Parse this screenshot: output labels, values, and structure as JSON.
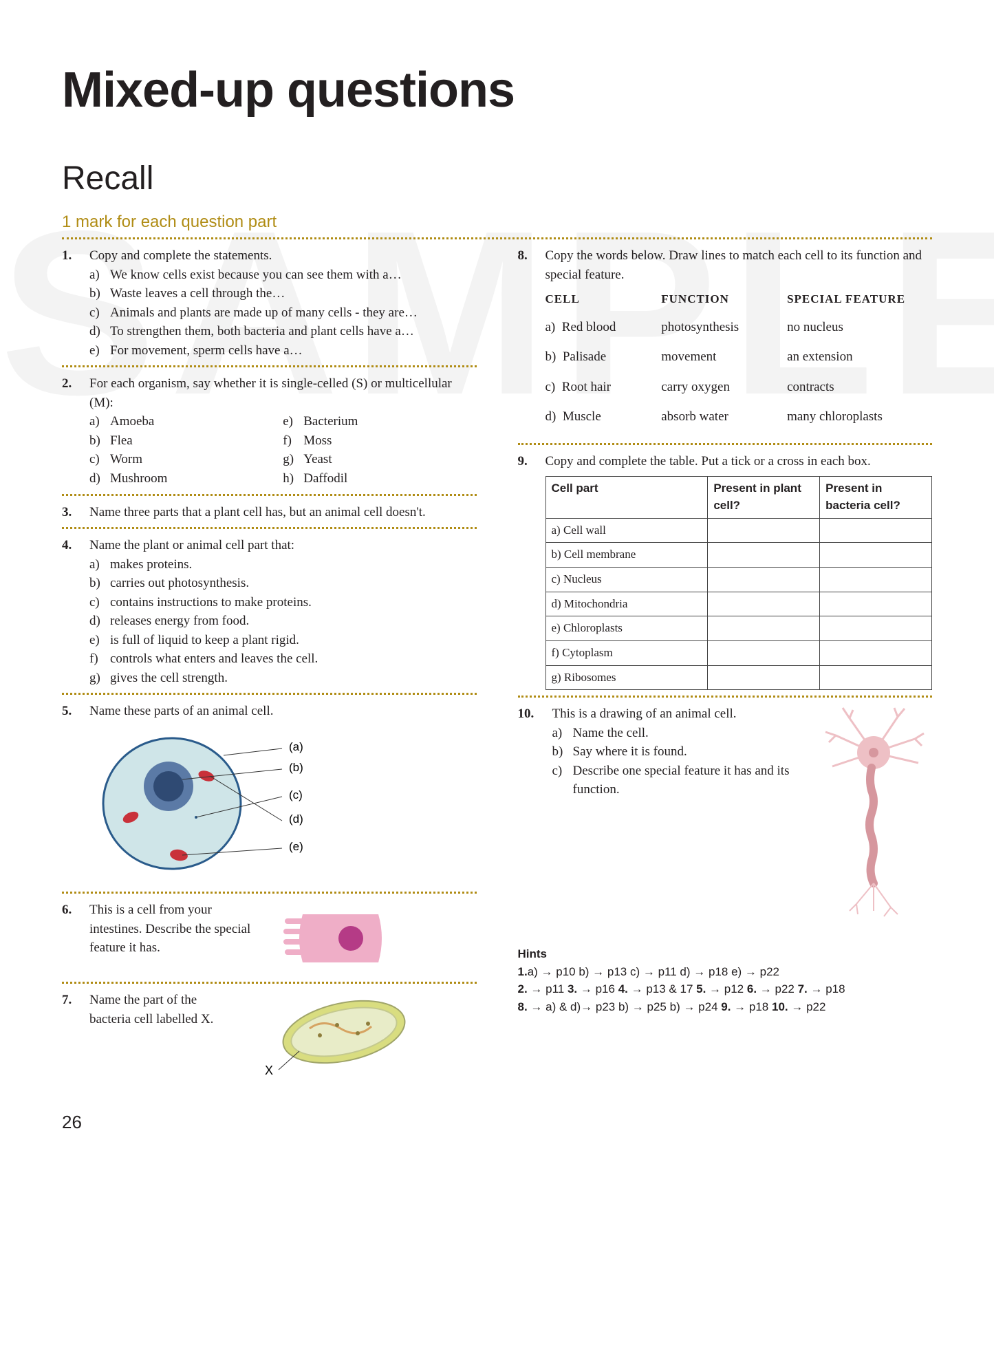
{
  "watermark": "SAMPLE",
  "title": "Mixed-up questions",
  "section": "Recall",
  "marks_line": "1 mark for each question part",
  "page_number": "26",
  "left": {
    "q1": {
      "num": "1.",
      "text": "Copy and complete the statements.",
      "subs": {
        "a": "We know cells exist because you can see them with a…",
        "b": "Waste leaves a cell through the…",
        "c": "Animals and plants are made up of many cells - they are…",
        "d": "To strengthen them, both bacteria and plant cells have a…",
        "e": "For movement, sperm cells have a…"
      }
    },
    "q2": {
      "num": "2.",
      "text": "For each organism, say whether it is single-celled (S) or multicellular (M):",
      "items": {
        "a": "Amoeba",
        "b": "Flea",
        "c": "Worm",
        "d": "Mushroom",
        "e": "Bacterium",
        "f": "Moss",
        "g": "Yeast",
        "h": "Daffodil"
      }
    },
    "q3": {
      "num": "3.",
      "text": "Name three parts that a plant cell has, but an animal cell doesn't."
    },
    "q4": {
      "num": "4.",
      "text": "Name the plant or animal cell part that:",
      "subs": {
        "a": "makes proteins.",
        "b": "carries out photosynthesis.",
        "c": "contains instructions to make proteins.",
        "d": "releases energy from food.",
        "e": "is full of liquid to keep a plant rigid.",
        "f": "controls what enters and leaves the cell.",
        "g": "gives the cell strength."
      }
    },
    "q5": {
      "num": "5.",
      "text": "Name these parts of an animal cell.",
      "labels": {
        "a": "(a)",
        "b": "(b)",
        "c": "(c)",
        "d": "(d)",
        "e": "(e)"
      }
    },
    "q6": {
      "num": "6.",
      "text": "This is a cell from your intestines. Describe the special feature it has."
    },
    "q7": {
      "num": "7.",
      "text": "Name the part of the bacteria cell labelled X.",
      "x": "X"
    }
  },
  "right": {
    "q8": {
      "num": "8.",
      "text": "Copy the words below. Draw lines to match each cell to its function and special feature.",
      "headers": {
        "cell": "CELL",
        "func": "FUNCTION",
        "feat": "SPECIAL FEATURE"
      },
      "rows": [
        {
          "lbl": "a)",
          "cell": "Red blood",
          "func": "photosynthesis",
          "feat": "no nucleus"
        },
        {
          "lbl": "b)",
          "cell": "Palisade",
          "func": "movement",
          "feat": "an extension"
        },
        {
          "lbl": "c)",
          "cell": "Root hair",
          "func": "carry oxygen",
          "feat": "contracts"
        },
        {
          "lbl": "d)",
          "cell": "Muscle",
          "func": "absorb water",
          "feat": "many chloroplasts"
        }
      ]
    },
    "q9": {
      "num": "9.",
      "text": "Copy and complete the table. Put a tick or a cross in each box.",
      "th": {
        "part": "Cell part",
        "plant": "Present in plant cell?",
        "bact": "Present in bacteria cell?"
      },
      "rows": [
        "a)  Cell wall",
        "b)  Cell membrane",
        "c)  Nucleus",
        "d)  Mitochondria",
        "e)  Chloroplasts",
        "f)  Cytoplasm",
        "g)  Ribosomes"
      ]
    },
    "q10": {
      "num": "10.",
      "text": "This is a drawing of an animal cell.",
      "subs": {
        "a": "Name the cell.",
        "b": "Say where it is found.",
        "c": "Describe one special feature it has and its function."
      }
    }
  },
  "hints": {
    "title": "Hints",
    "l1": "1.a) → p10 b) → p13 c) → p11 d) → p18 e) → p22",
    "l2": "2. → p11 3. → p16 4. → p13 & 17 5. → p12 6. → p22 7. → p18",
    "l3": "8. → a) & d)→ p23 b) → p25 b) → p24 9. → p18 10. → p22"
  },
  "colors": {
    "accent": "#b08c14",
    "cell_fill": "#cfe5e8",
    "cell_stroke": "#2a5b8b",
    "nucleus_outer": "#5b7aa6",
    "nucleus_inner": "#2f4a73",
    "mito": "#c9313a",
    "intestine": "#efaec7",
    "intestine_nuc": "#b53b86",
    "bact_wall": "#d9dd80",
    "bact_in": "#e8ecc8",
    "neuron": "#eec0c5",
    "neuron_dark": "#d6979e"
  }
}
